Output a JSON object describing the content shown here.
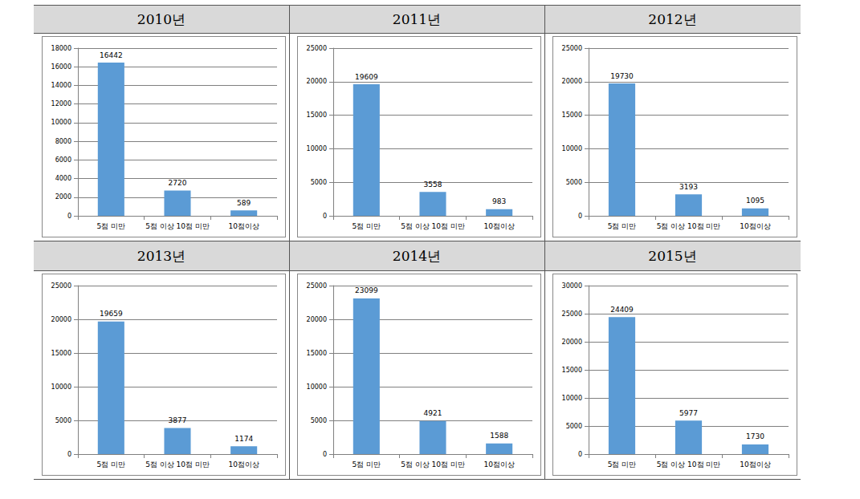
{
  "chart_data": [
    {
      "type": "bar",
      "title": "2010년",
      "categories": [
        "5점 미만",
        "5점 이상 10점 미만",
        "10점이상"
      ],
      "values": [
        16442,
        2720,
        589
      ],
      "color": "#5b9bd5",
      "ylim": [
        0,
        18000
      ],
      "yticks": [
        0,
        2000,
        4000,
        6000,
        8000,
        10000,
        12000,
        14000,
        16000,
        18000
      ],
      "grid": true,
      "data_labels": true
    },
    {
      "type": "bar",
      "title": "2011년",
      "categories": [
        "5점 미만",
        "5점 이상 10점 미만",
        "10점이상"
      ],
      "values": [
        19609,
        3558,
        983
      ],
      "color": "#5b9bd5",
      "ylim": [
        0,
        25000
      ],
      "yticks": [
        0,
        5000,
        10000,
        15000,
        20000,
        25000
      ],
      "grid": true,
      "data_labels": true
    },
    {
      "type": "bar",
      "title": "2012년",
      "categories": [
        "5점 미만",
        "5점 이상 10점 미만",
        "10점이상"
      ],
      "values": [
        19730,
        3193,
        1095
      ],
      "color": "#5b9bd5",
      "ylim": [
        0,
        25000
      ],
      "yticks": [
        0,
        5000,
        10000,
        15000,
        20000,
        25000
      ],
      "grid": true,
      "data_labels": true
    },
    {
      "type": "bar",
      "title": "2013년",
      "categories": [
        "5점 미만",
        "5점 이상 10점 미만",
        "10점이상"
      ],
      "values": [
        19659,
        3877,
        1174
      ],
      "color": "#5b9bd5",
      "ylim": [
        0,
        25000
      ],
      "yticks": [
        0,
        5000,
        10000,
        15000,
        20000,
        25000
      ],
      "grid": true,
      "data_labels": true
    },
    {
      "type": "bar",
      "title": "2014년",
      "categories": [
        "5점 미만",
        "5점 이상 10점 미만",
        "10점이상"
      ],
      "values": [
        23099,
        4921,
        1588
      ],
      "color": "#5b9bd5",
      "ylim": [
        0,
        25000
      ],
      "yticks": [
        0,
        5000,
        10000,
        15000,
        20000,
        25000
      ],
      "grid": true,
      "data_labels": true
    },
    {
      "type": "bar",
      "title": "2015년",
      "categories": [
        "5점 미만",
        "5점 이상 10점 미만",
        "10점이상"
      ],
      "values": [
        24409,
        5977,
        1730
      ],
      "color": "#5b9bd5",
      "ylim": [
        0,
        30000
      ],
      "yticks": [
        0,
        5000,
        10000,
        15000,
        20000,
        25000,
        30000
      ],
      "grid": true,
      "data_labels": true
    }
  ]
}
